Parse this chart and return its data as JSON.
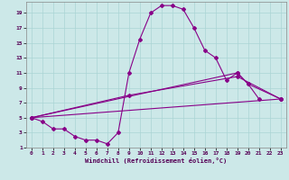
{
  "xlabel": "Windchill (Refroidissement éolien,°C)",
  "background_color": "#cce8e8",
  "line_color": "#880088",
  "grid_color": "#aad4d4",
  "xlim": [
    -0.5,
    23.5
  ],
  "ylim": [
    1,
    20.5
  ],
  "xticks": [
    0,
    1,
    2,
    3,
    4,
    5,
    6,
    7,
    8,
    9,
    10,
    11,
    12,
    13,
    14,
    15,
    16,
    17,
    18,
    19,
    20,
    21,
    22,
    23
  ],
  "yticks": [
    1,
    3,
    5,
    7,
    9,
    11,
    13,
    15,
    17,
    19
  ],
  "line1_x": [
    0,
    1,
    2,
    3,
    4,
    5,
    6,
    7,
    8,
    9,
    10,
    11,
    12,
    13,
    14,
    15,
    16,
    17,
    18,
    19,
    20,
    21
  ],
  "line1_y": [
    5,
    4.5,
    3.5,
    3.5,
    2.5,
    2.0,
    2.0,
    1.5,
    3.0,
    11.0,
    15.5,
    19.0,
    20.0,
    20.0,
    19.5,
    17.0,
    14.0,
    13.0,
    10.0,
    11.0,
    9.5,
    7.5
  ],
  "line2_x": [
    0,
    19,
    20,
    23
  ],
  "line2_y": [
    5,
    11.0,
    9.5,
    7.5
  ],
  "line3_x": [
    0,
    9,
    19,
    23
  ],
  "line3_y": [
    5,
    8.0,
    10.5,
    7.5
  ],
  "line4_x": [
    0,
    23
  ],
  "line4_y": [
    5,
    7.5
  ],
  "marker": "D",
  "markersize": 2.0,
  "linewidth": 0.8
}
